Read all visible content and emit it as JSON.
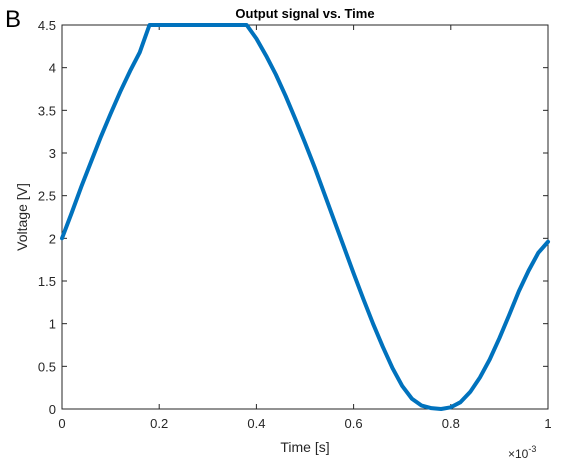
{
  "panel_label": "B",
  "chart_data": {
    "type": "line",
    "title": "Output signal vs. Time",
    "xlabel": "Time [s]",
    "ylabel": "Voltage [V]",
    "x_multiplier_base": "×10",
    "x_multiplier_exponent": "-3",
    "xlim": [
      0,
      1
    ],
    "ylim": [
      0,
      4.5
    ],
    "x_ticks": [
      0,
      0.2,
      0.4,
      0.6,
      0.8,
      1
    ],
    "x_tick_labels": [
      "0",
      "0.2",
      "0.4",
      "0.6",
      "0.8",
      "1"
    ],
    "y_ticks": [
      0,
      0.5,
      1,
      1.5,
      2,
      2.5,
      3,
      3.5,
      4,
      4.5
    ],
    "y_tick_labels": [
      "0",
      "0.5",
      "1",
      "1.5",
      "2",
      "2.5",
      "3",
      "3.5",
      "4",
      "4.5"
    ],
    "grid": false,
    "series": [
      {
        "color": "#0072BD",
        "x": [
          0,
          0.02,
          0.04,
          0.06,
          0.08,
          0.1,
          0.12,
          0.14,
          0.16,
          0.18,
          0.2,
          0.22,
          0.24,
          0.26,
          0.28,
          0.3,
          0.32,
          0.34,
          0.36,
          0.38,
          0.4,
          0.42,
          0.44,
          0.46,
          0.48,
          0.5,
          0.52,
          0.54,
          0.56,
          0.58,
          0.6,
          0.62,
          0.64,
          0.66,
          0.68,
          0.7,
          0.72,
          0.74,
          0.76,
          0.78,
          0.8,
          0.82,
          0.84,
          0.86,
          0.88,
          0.9,
          0.92,
          0.94,
          0.96,
          0.98,
          1
        ],
        "y": [
          2.0,
          2.3,
          2.61,
          2.9,
          3.19,
          3.46,
          3.72,
          3.96,
          4.18,
          4.5,
          4.5,
          4.5,
          4.5,
          4.5,
          4.5,
          4.5,
          4.5,
          4.5,
          4.5,
          4.5,
          4.34,
          4.14,
          3.92,
          3.67,
          3.4,
          3.12,
          2.83,
          2.52,
          2.21,
          1.9,
          1.59,
          1.29,
          1.0,
          0.73,
          0.48,
          0.27,
          0.12,
          0.04,
          0.01,
          0.0,
          0.02,
          0.08,
          0.2,
          0.37,
          0.58,
          0.83,
          1.1,
          1.38,
          1.62,
          1.83,
          1.96
        ]
      }
    ]
  }
}
